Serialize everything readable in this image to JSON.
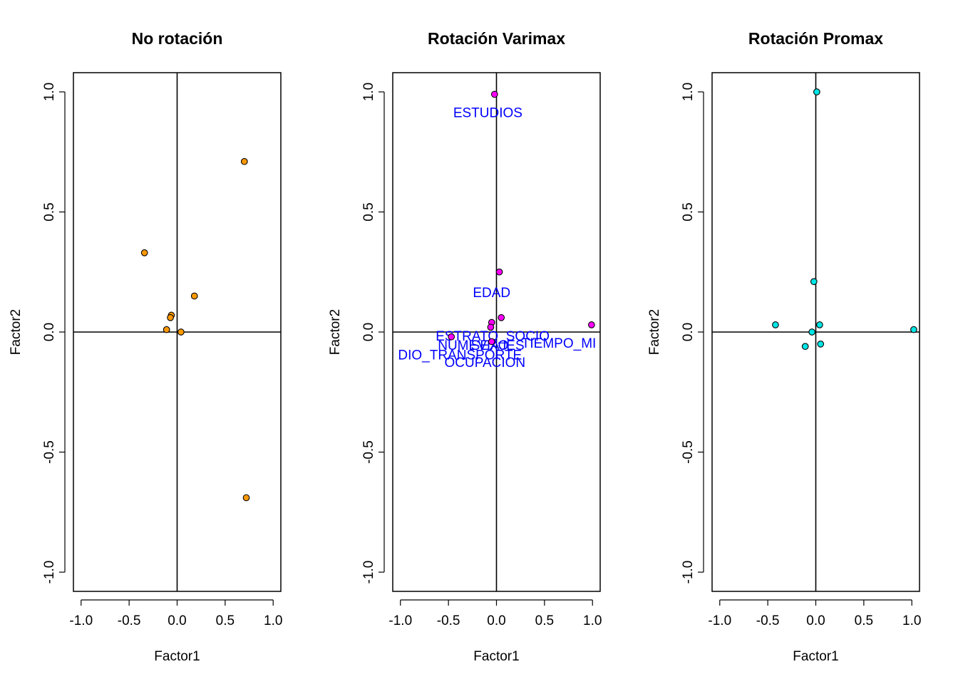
{
  "chart_data": [
    {
      "type": "scatter",
      "title": "No rotación",
      "xlabel": "Factor1",
      "ylabel": "Factor2",
      "xlim": [
        -1.08,
        1.08
      ],
      "ylim": [
        -1.08,
        1.08
      ],
      "xticks": [
        "-1.0",
        "-0.5",
        "0.0",
        "0.5",
        "1.0"
      ],
      "yticks": [
        "-1.0",
        "-0.5",
        "0.0",
        "0.5",
        "1.0"
      ],
      "point_color": "#ff9900",
      "points": [
        {
          "x": 0.7,
          "y": 0.71
        },
        {
          "x": -0.34,
          "y": 0.33
        },
        {
          "x": 0.18,
          "y": 0.15
        },
        {
          "x": -0.06,
          "y": 0.07
        },
        {
          "x": -0.07,
          "y": 0.06
        },
        {
          "x": -0.11,
          "y": 0.01
        },
        {
          "x": 0.04,
          "y": 0.0
        },
        {
          "x": 0.72,
          "y": -0.69
        }
      ],
      "labels": []
    },
    {
      "type": "scatter",
      "title": "Rotación Varimax",
      "xlabel": "Factor1",
      "ylabel": "Factor2",
      "xlim": [
        -1.08,
        1.08
      ],
      "ylim": [
        -1.08,
        1.08
      ],
      "xticks": [
        "-1.0",
        "-0.5",
        "0.0",
        "0.5",
        "1.0"
      ],
      "yticks": [
        "-1.0",
        "-0.5",
        "0.0",
        "0.5",
        "1.0"
      ],
      "point_color": "#ff00ff",
      "label_color": "#0000ff",
      "points": [
        {
          "x": -0.02,
          "y": 0.99
        },
        {
          "x": 0.03,
          "y": 0.25
        },
        {
          "x": 0.05,
          "y": 0.06
        },
        {
          "x": -0.05,
          "y": 0.04
        },
        {
          "x": -0.06,
          "y": 0.02
        },
        {
          "x": -0.47,
          "y": -0.02
        },
        {
          "x": -0.05,
          "y": -0.04
        },
        {
          "x": 0.99,
          "y": 0.03
        }
      ],
      "labels": [
        {
          "text": "ESTUDIOS",
          "x": -0.09,
          "y": 0.91
        },
        {
          "text": "EDAD",
          "x": -0.05,
          "y": 0.16
        },
        {
          "text": "ESTRATO_SOCIO",
          "x": -0.04,
          "y": -0.02
        },
        {
          "text": "SEXO",
          "x": -0.07,
          "y": -0.06
        },
        {
          "text": "NUMEVIAJES",
          "x": -0.16,
          "y": -0.06
        },
        {
          "text": "TIEMPO_MI",
          "x": 0.65,
          "y": -0.05
        },
        {
          "text": "DIO_TRANSPORTE",
          "x": -0.38,
          "y": -0.1
        },
        {
          "text": "OCUPACION",
          "x": -0.12,
          "y": -0.13
        }
      ]
    },
    {
      "type": "scatter",
      "title": "Rotación Promax",
      "xlabel": "Factor1",
      "ylabel": "Factor2",
      "xlim": [
        -1.08,
        1.08
      ],
      "ylim": [
        -1.08,
        1.08
      ],
      "xticks": [
        "-1.0",
        "-0.5",
        "0.0",
        "0.5",
        "1.0"
      ],
      "yticks": [
        "-1.0",
        "-0.5",
        "0.0",
        "0.5",
        "1.0"
      ],
      "point_color": "#00e5e5",
      "points": [
        {
          "x": 0.01,
          "y": 1.0
        },
        {
          "x": -0.02,
          "y": 0.21
        },
        {
          "x": 0.04,
          "y": 0.03
        },
        {
          "x": -0.42,
          "y": 0.03
        },
        {
          "x": 1.02,
          "y": 0.01
        },
        {
          "x": -0.04,
          "y": 0.0
        },
        {
          "x": 0.05,
          "y": -0.05
        },
        {
          "x": -0.11,
          "y": -0.06
        }
      ],
      "labels": []
    }
  ]
}
